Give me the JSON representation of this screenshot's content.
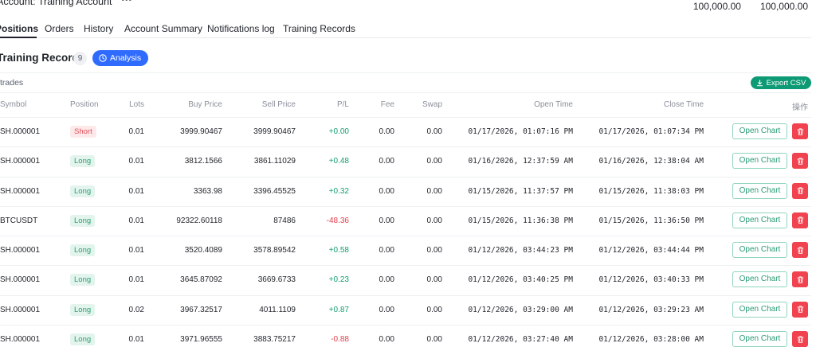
{
  "account": {
    "label": "Account: Training Account",
    "more": "•••",
    "balance_1": "100,000.00",
    "balance_2": "100,000.00"
  },
  "tabs": [
    "Positions",
    "Orders",
    "History",
    "Account Summary",
    "Notifications log",
    "Training Records"
  ],
  "section": {
    "title": "Training Records",
    "count": "9",
    "analysis_label": "Analysis"
  },
  "trades_bar": {
    "label": "trades",
    "export_label": "Export CSV"
  },
  "table": {
    "headers": {
      "symbol": "Symbol",
      "position": "Position",
      "lots": "Lots",
      "buy_price": "Buy Price",
      "sell_price": "Sell Price",
      "pl": "P/L",
      "fee": "Fee",
      "swap": "Swap",
      "open_time": "Open Time",
      "close_time": "Close Time",
      "actions": "操作"
    },
    "open_chart_label": "Open Chart",
    "rows": [
      {
        "symbol": "SH.000001",
        "position": "Short",
        "lots": "0.01",
        "buy_price": "3999.90467",
        "sell_price": "3999.90467",
        "pl": "+0.00",
        "fee": "0.00",
        "swap": "0.00",
        "open_time": "01/17/2026, 01:07:16 PM",
        "close_time": "01/17/2026, 01:07:34 PM"
      },
      {
        "symbol": "SH.000001",
        "position": "Long",
        "lots": "0.01",
        "buy_price": "3812.1566",
        "sell_price": "3861.11029",
        "pl": "+0.48",
        "fee": "0.00",
        "swap": "0.00",
        "open_time": "01/16/2026, 12:37:59 AM",
        "close_time": "01/16/2026, 12:38:04 AM"
      },
      {
        "symbol": "SH.000001",
        "position": "Long",
        "lots": "0.01",
        "buy_price": "3363.98",
        "sell_price": "3396.45525",
        "pl": "+0.32",
        "fee": "0.00",
        "swap": "0.00",
        "open_time": "01/15/2026, 11:37:57 PM",
        "close_time": "01/15/2026, 11:38:03 PM"
      },
      {
        "symbol": "BTCUSDT",
        "position": "Long",
        "lots": "0.01",
        "buy_price": "92322.60118",
        "sell_price": "87486",
        "pl": "-48.36",
        "fee": "0.00",
        "swap": "0.00",
        "open_time": "01/15/2026, 11:36:38 PM",
        "close_time": "01/15/2026, 11:36:50 PM"
      },
      {
        "symbol": "SH.000001",
        "position": "Long",
        "lots": "0.01",
        "buy_price": "3520.4089",
        "sell_price": "3578.89542",
        "pl": "+0.58",
        "fee": "0.00",
        "swap": "0.00",
        "open_time": "01/12/2026, 03:44:23 PM",
        "close_time": "01/12/2026, 03:44:44 PM"
      },
      {
        "symbol": "SH.000001",
        "position": "Long",
        "lots": "0.01",
        "buy_price": "3645.87092",
        "sell_price": "3669.6733",
        "pl": "+0.23",
        "fee": "0.00",
        "swap": "0.00",
        "open_time": "01/12/2026, 03:40:25 PM",
        "close_time": "01/12/2026, 03:40:33 PM"
      },
      {
        "symbol": "SH.000001",
        "position": "Long",
        "lots": "0.02",
        "buy_price": "3967.32517",
        "sell_price": "4011.1109",
        "pl": "+0.87",
        "fee": "0.00",
        "swap": "0.00",
        "open_time": "01/12/2026, 03:29:00 AM",
        "close_time": "01/12/2026, 03:29:23 AM"
      },
      {
        "symbol": "SH.000001",
        "position": "Long",
        "lots": "0.01",
        "buy_price": "3971.96555",
        "sell_price": "3883.75217",
        "pl": "-0.88",
        "fee": "0.00",
        "swap": "0.00",
        "open_time": "01/12/2026, 03:27:40 AM",
        "close_time": "01/12/2026, 03:28:00 AM"
      }
    ]
  },
  "colors": {
    "accent_blue": "#2f6bff",
    "export_green": "#0d9a74",
    "profit_green": "#13a06e",
    "loss_red": "#e2404c",
    "delete_red": "#f0434f"
  }
}
